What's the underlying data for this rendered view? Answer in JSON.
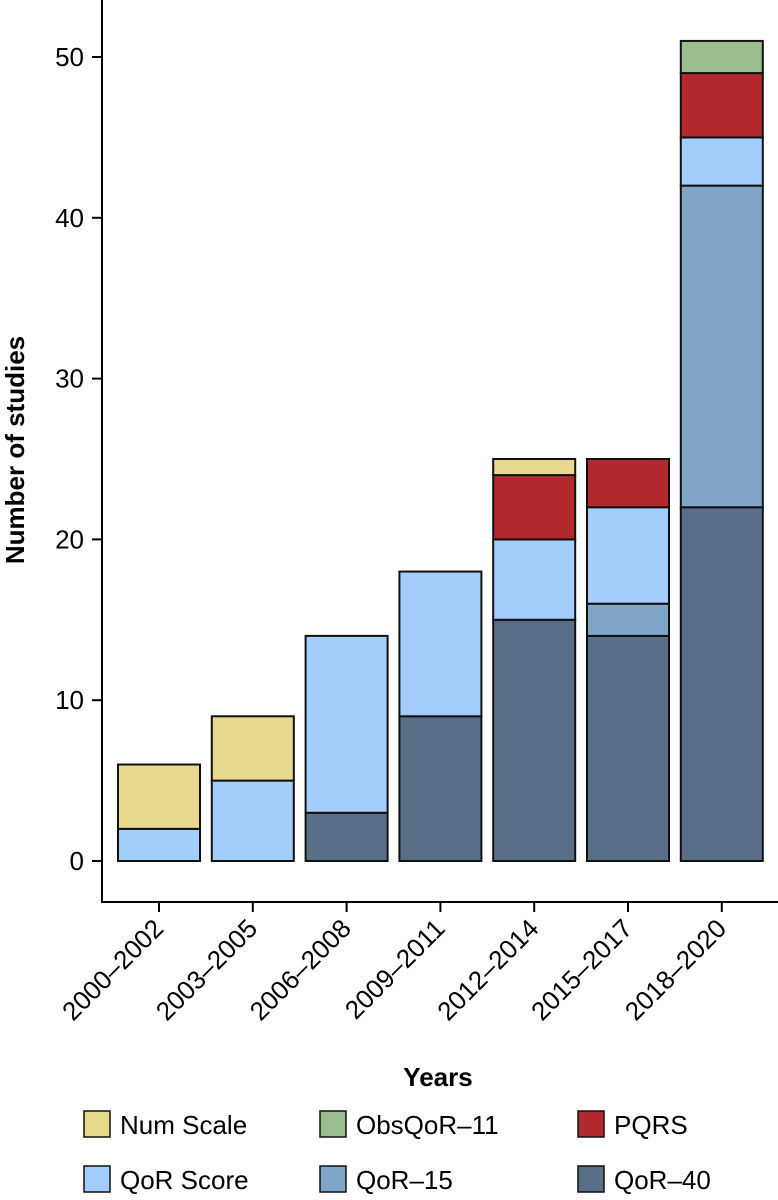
{
  "chart_data": {
    "type": "bar",
    "stacked": true,
    "title": "",
    "xlabel": "Years",
    "ylabel": "Number of studies",
    "ylim": [
      0,
      53
    ],
    "yticks": [
      0,
      10,
      20,
      30,
      40,
      50
    ],
    "grid": false,
    "legend_position": "bottom",
    "categories": [
      "2000–2002",
      "2003–2005",
      "2006–2008",
      "2009–2011",
      "2012–2014",
      "2015–2017",
      "2018–2020"
    ],
    "series": [
      {
        "name": "QoR–40",
        "color": "#5b6e88",
        "values": [
          0,
          0,
          3,
          9,
          15,
          14,
          22
        ]
      },
      {
        "name": "QoR–15",
        "color": "#7fa5c9",
        "values": [
          0,
          0,
          0,
          0,
          0,
          2,
          20
        ]
      },
      {
        "name": "QoR Score",
        "color": "#a3cdfb",
        "values": [
          2,
          5,
          11,
          9,
          5,
          6,
          3
        ]
      },
      {
        "name": "PQRS",
        "color": "#b2292e",
        "values": [
          0,
          0,
          0,
          0,
          4,
          3,
          4
        ]
      },
      {
        "name": "ObsQoR–11",
        "color": "#9bbd8d",
        "values": [
          0,
          0,
          0,
          0,
          0,
          0,
          2
        ]
      },
      {
        "name": "Num Scale",
        "color": "#e7d98d",
        "values": [
          4,
          4,
          0,
          0,
          1,
          0,
          0
        ]
      }
    ],
    "legend_order": [
      "Num Scale",
      "ObsQoR–11",
      "PQRS",
      "QoR Score",
      "QoR–15",
      "QoR–40"
    ]
  }
}
